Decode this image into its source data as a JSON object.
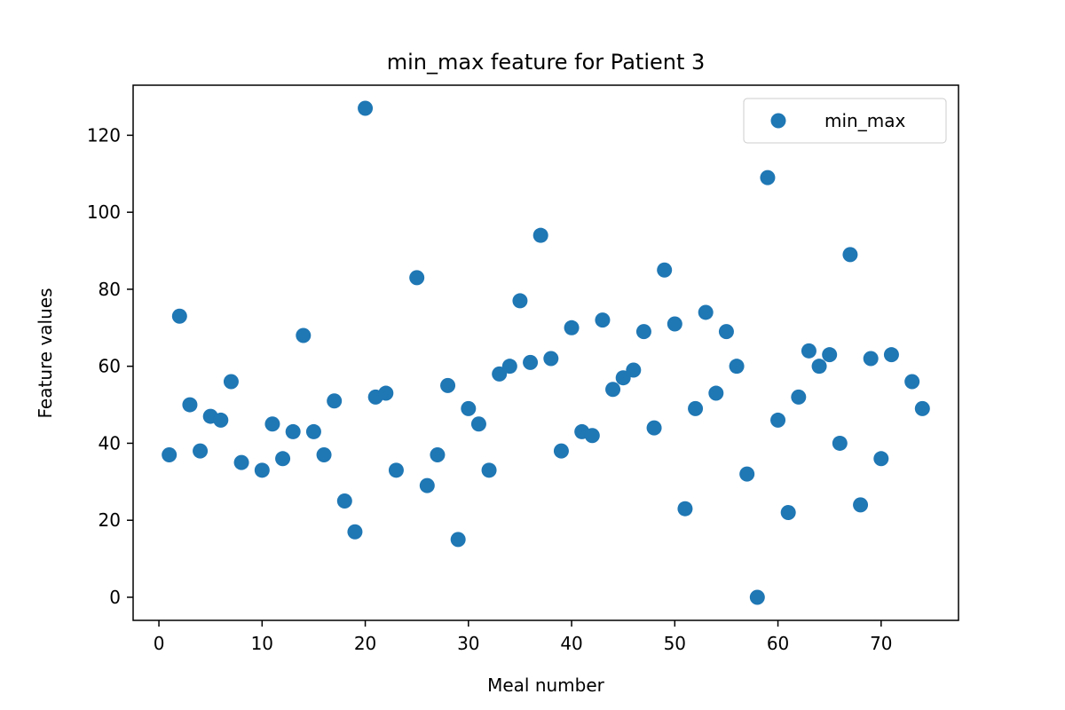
{
  "chart_data": {
    "type": "scatter",
    "title": "min_max feature for Patient 3",
    "xlabel": "Meal number",
    "ylabel": "Feature values",
    "xlim": [
      -2.5,
      77.5
    ],
    "ylim": [
      -6,
      133
    ],
    "xticks": [
      0,
      10,
      20,
      30,
      40,
      50,
      60,
      70
    ],
    "yticks": [
      0,
      20,
      40,
      60,
      80,
      100,
      120
    ],
    "grid": false,
    "legend_position": "top-right",
    "colors": {
      "points": "#1f77b4"
    },
    "series": [
      {
        "name": "min_max",
        "x": [
          1,
          2,
          3,
          4,
          5,
          6,
          7,
          8,
          10,
          11,
          12,
          13,
          14,
          15,
          16,
          17,
          18,
          19,
          20,
          21,
          22,
          23,
          25,
          26,
          27,
          28,
          29,
          30,
          31,
          32,
          33,
          34,
          35,
          36,
          37,
          38,
          39,
          40,
          41,
          42,
          43,
          44,
          45,
          46,
          47,
          48,
          49,
          50,
          51,
          52,
          53,
          54,
          55,
          56,
          57,
          58,
          59,
          60,
          61,
          62,
          63,
          64,
          65,
          66,
          67,
          68,
          69,
          70,
          71,
          73,
          74
        ],
        "y": [
          37,
          73,
          50,
          38,
          47,
          46,
          56,
          35,
          33,
          45,
          36,
          43,
          68,
          43,
          37,
          51,
          25,
          17,
          127,
          52,
          53,
          33,
          83,
          29,
          37,
          55,
          15,
          49,
          45,
          33,
          58,
          60,
          77,
          61,
          94,
          62,
          38,
          70,
          43,
          42,
          72,
          54,
          57,
          59,
          69,
          44,
          85,
          71,
          23,
          49,
          74,
          53,
          69,
          60,
          32,
          0,
          109,
          46,
          22,
          52,
          64,
          60,
          63,
          40,
          89,
          24,
          62,
          36,
          63,
          56,
          49
        ]
      }
    ]
  }
}
